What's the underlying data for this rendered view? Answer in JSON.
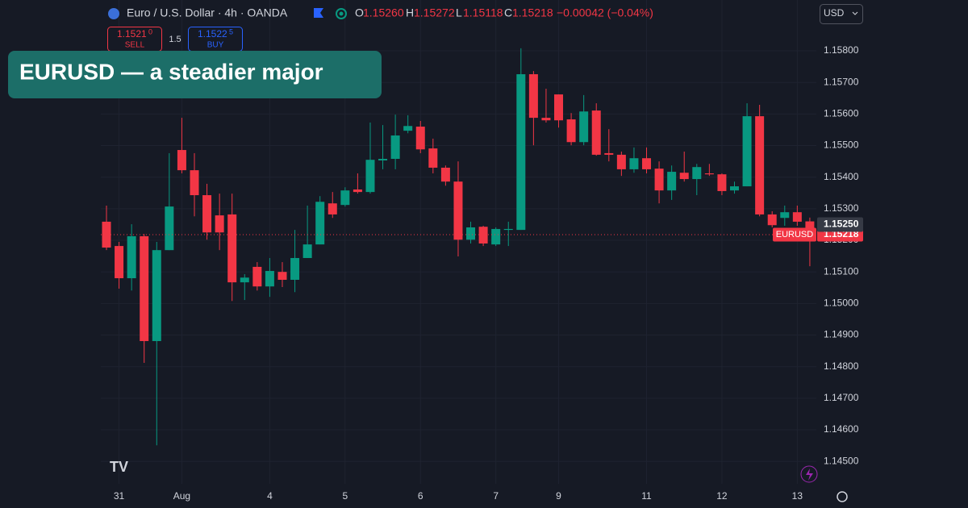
{
  "header": {
    "symbol": "Euro / U.S. Dollar · 4h · OANDA",
    "o_label": "O",
    "o": "1.15260",
    "h_label": "H",
    "h": "1.15272",
    "l_label": "L",
    "l": "1.15118",
    "c_label": "C",
    "c": "1.15218",
    "change": "−0.00042 (−0.04%)"
  },
  "trade": {
    "sell_price": "1.1521",
    "sell_pip": "0",
    "sell_label": "SELL",
    "spread": "1.5",
    "buy_price": "1.1522",
    "buy_pip": "5",
    "buy_label": "BUY"
  },
  "currency": "USD",
  "overlay": "EURUSD  —  a steadier major",
  "chart_data": {
    "type": "candlestick",
    "up_color": "#089981",
    "down_color": "#f23645",
    "grid": true,
    "categories": [
      null,
      "31",
      null,
      null,
      null,
      null,
      "Aug",
      null,
      null,
      null,
      null,
      null,
      null,
      "4",
      null,
      null,
      null,
      null,
      null,
      "5",
      null,
      null,
      null,
      null,
      null,
      "6",
      null,
      null,
      null,
      null,
      null,
      "7",
      null,
      null,
      null,
      null,
      "9",
      null,
      null,
      null,
      null,
      null,
      null,
      "11",
      null,
      null,
      null,
      null,
      null,
      "12",
      null,
      null,
      null,
      null,
      null,
      "13",
      null
    ],
    "open": [
      1.15259,
      1.15182,
      1.1508,
      1.15213,
      1.14881,
      1.15169,
      1.15486,
      1.15422,
      1.15343,
      1.15279,
      1.15282,
      1.15067,
      1.15116,
      1.15054,
      1.151,
      1.15075,
      1.15144,
      1.15187,
      1.15317,
      1.15312,
      1.15361,
      1.15353,
      1.15453,
      1.15458,
      1.15547,
      1.1556,
      1.15491,
      1.1543,
      1.15386,
      1.15202,
      1.15243,
      1.15187,
      1.15233,
      1.15233,
      1.15726,
      1.15588,
      1.15662,
      1.15583,
      1.15511,
      1.15611,
      1.15476,
      1.15471,
      1.15425,
      1.1546,
      1.15427,
      1.15358,
      1.15414,
      1.15394,
      1.15412,
      1.15409,
      1.15358,
      1.15371,
      1.15593,
      1.15282,
      1.15271,
      1.15289,
      1.1526
    ],
    "high": [
      1.1531,
      1.15195,
      1.15251,
      1.1522,
      1.15195,
      1.15476,
      1.15588,
      1.15476,
      1.15379,
      1.15348,
      1.15348,
      1.15093,
      1.15131,
      1.15144,
      1.15131,
      1.15233,
      1.1531,
      1.1534,
      1.15353,
      1.15368,
      1.15412,
      1.15573,
      1.15565,
      1.15598,
      1.15596,
      1.15578,
      1.15522,
      1.15437,
      1.1545,
      1.15259,
      1.15246,
      1.15241,
      1.15259,
      1.15808,
      1.15736,
      1.1568,
      1.15662,
      1.15603,
      1.1566,
      1.15634,
      1.15552,
      1.15481,
      1.15494,
      1.15494,
      1.1545,
      1.15437,
      1.15481,
      1.15442,
      1.15442,
      1.15412,
      1.15386,
      1.15634,
      1.15629,
      1.15292,
      1.1531,
      1.1531,
      1.15272
    ],
    "low": [
      1.15169,
      1.15047,
      1.15041,
      1.14812,
      1.14551,
      1.15169,
      1.15412,
      1.15276,
      1.15202,
      1.15169,
      1.15008,
      1.15011,
      1.15041,
      1.15021,
      1.15052,
      1.15036,
      1.15144,
      1.15187,
      1.15271,
      1.15307,
      1.15348,
      1.15348,
      1.15425,
      1.15425,
      1.15539,
      1.15476,
      1.15412,
      1.15373,
      1.15149,
      1.1519,
      1.15182,
      1.15182,
      1.15182,
      1.15233,
      1.15501,
      1.15573,
      1.15557,
      1.15501,
      1.15501,
      1.15468,
      1.1545,
      1.15404,
      1.15414,
      1.15412,
      1.15317,
      1.15328,
      1.15386,
      1.15343,
      1.15404,
      1.15343,
      1.15348,
      1.15371,
      1.15276,
      1.15241,
      1.15246,
      1.15246,
      1.15118
    ],
    "close": [
      1.15177,
      1.1508,
      1.15213,
      1.14881,
      1.15169,
      1.15307,
      1.15422,
      1.15343,
      1.15225,
      1.15225,
      1.15067,
      1.15082,
      1.15054,
      1.15103,
      1.15075,
      1.15144,
      1.15187,
      1.15322,
      1.15282,
      1.15358,
      1.15353,
      1.15455,
      1.15458,
      1.15532,
      1.15562,
      1.15488,
      1.1543,
      1.15386,
      1.15202,
      1.15241,
      1.1519,
      1.15236,
      1.15236,
      1.15726,
      1.15588,
      1.1558,
      1.1558,
      1.15511,
      1.15608,
      1.15471,
      1.15471,
      1.15425,
      1.1546,
      1.15425,
      1.15358,
      1.15417,
      1.15394,
      1.15432,
      1.15409,
      1.15356,
      1.15371,
      1.15593,
      1.15282,
      1.15248,
      1.15289,
      1.15259,
      1.15218
    ],
    "ylim": [
      1.14429,
      1.15961
    ],
    "yticks": [
      {
        "value": 1.158,
        "label": "1.15800"
      },
      {
        "value": 1.157,
        "label": "1.15700"
      },
      {
        "value": 1.156,
        "label": "1.15600"
      },
      {
        "value": 1.155,
        "label": "1.15500"
      },
      {
        "value": 1.154,
        "label": "1.15400"
      },
      {
        "value": 1.153,
        "label": "1.15300"
      },
      {
        "value": 1.152,
        "label": "1.15200"
      },
      {
        "value": 1.151,
        "label": "1.15100"
      },
      {
        "value": 1.15,
        "label": "1.15000"
      },
      {
        "value": 1.149,
        "label": "1.14900"
      },
      {
        "value": 1.148,
        "label": "1.14800"
      },
      {
        "value": 1.147,
        "label": "1.14700"
      },
      {
        "value": 1.146,
        "label": "1.14600"
      },
      {
        "value": 1.145,
        "label": "1.14500"
      }
    ],
    "crosshair": {
      "value": 1.1525,
      "label": "1.15250"
    },
    "last_price": {
      "name": "EURUSD",
      "value": 1.15218,
      "label": "1.15218"
    }
  }
}
